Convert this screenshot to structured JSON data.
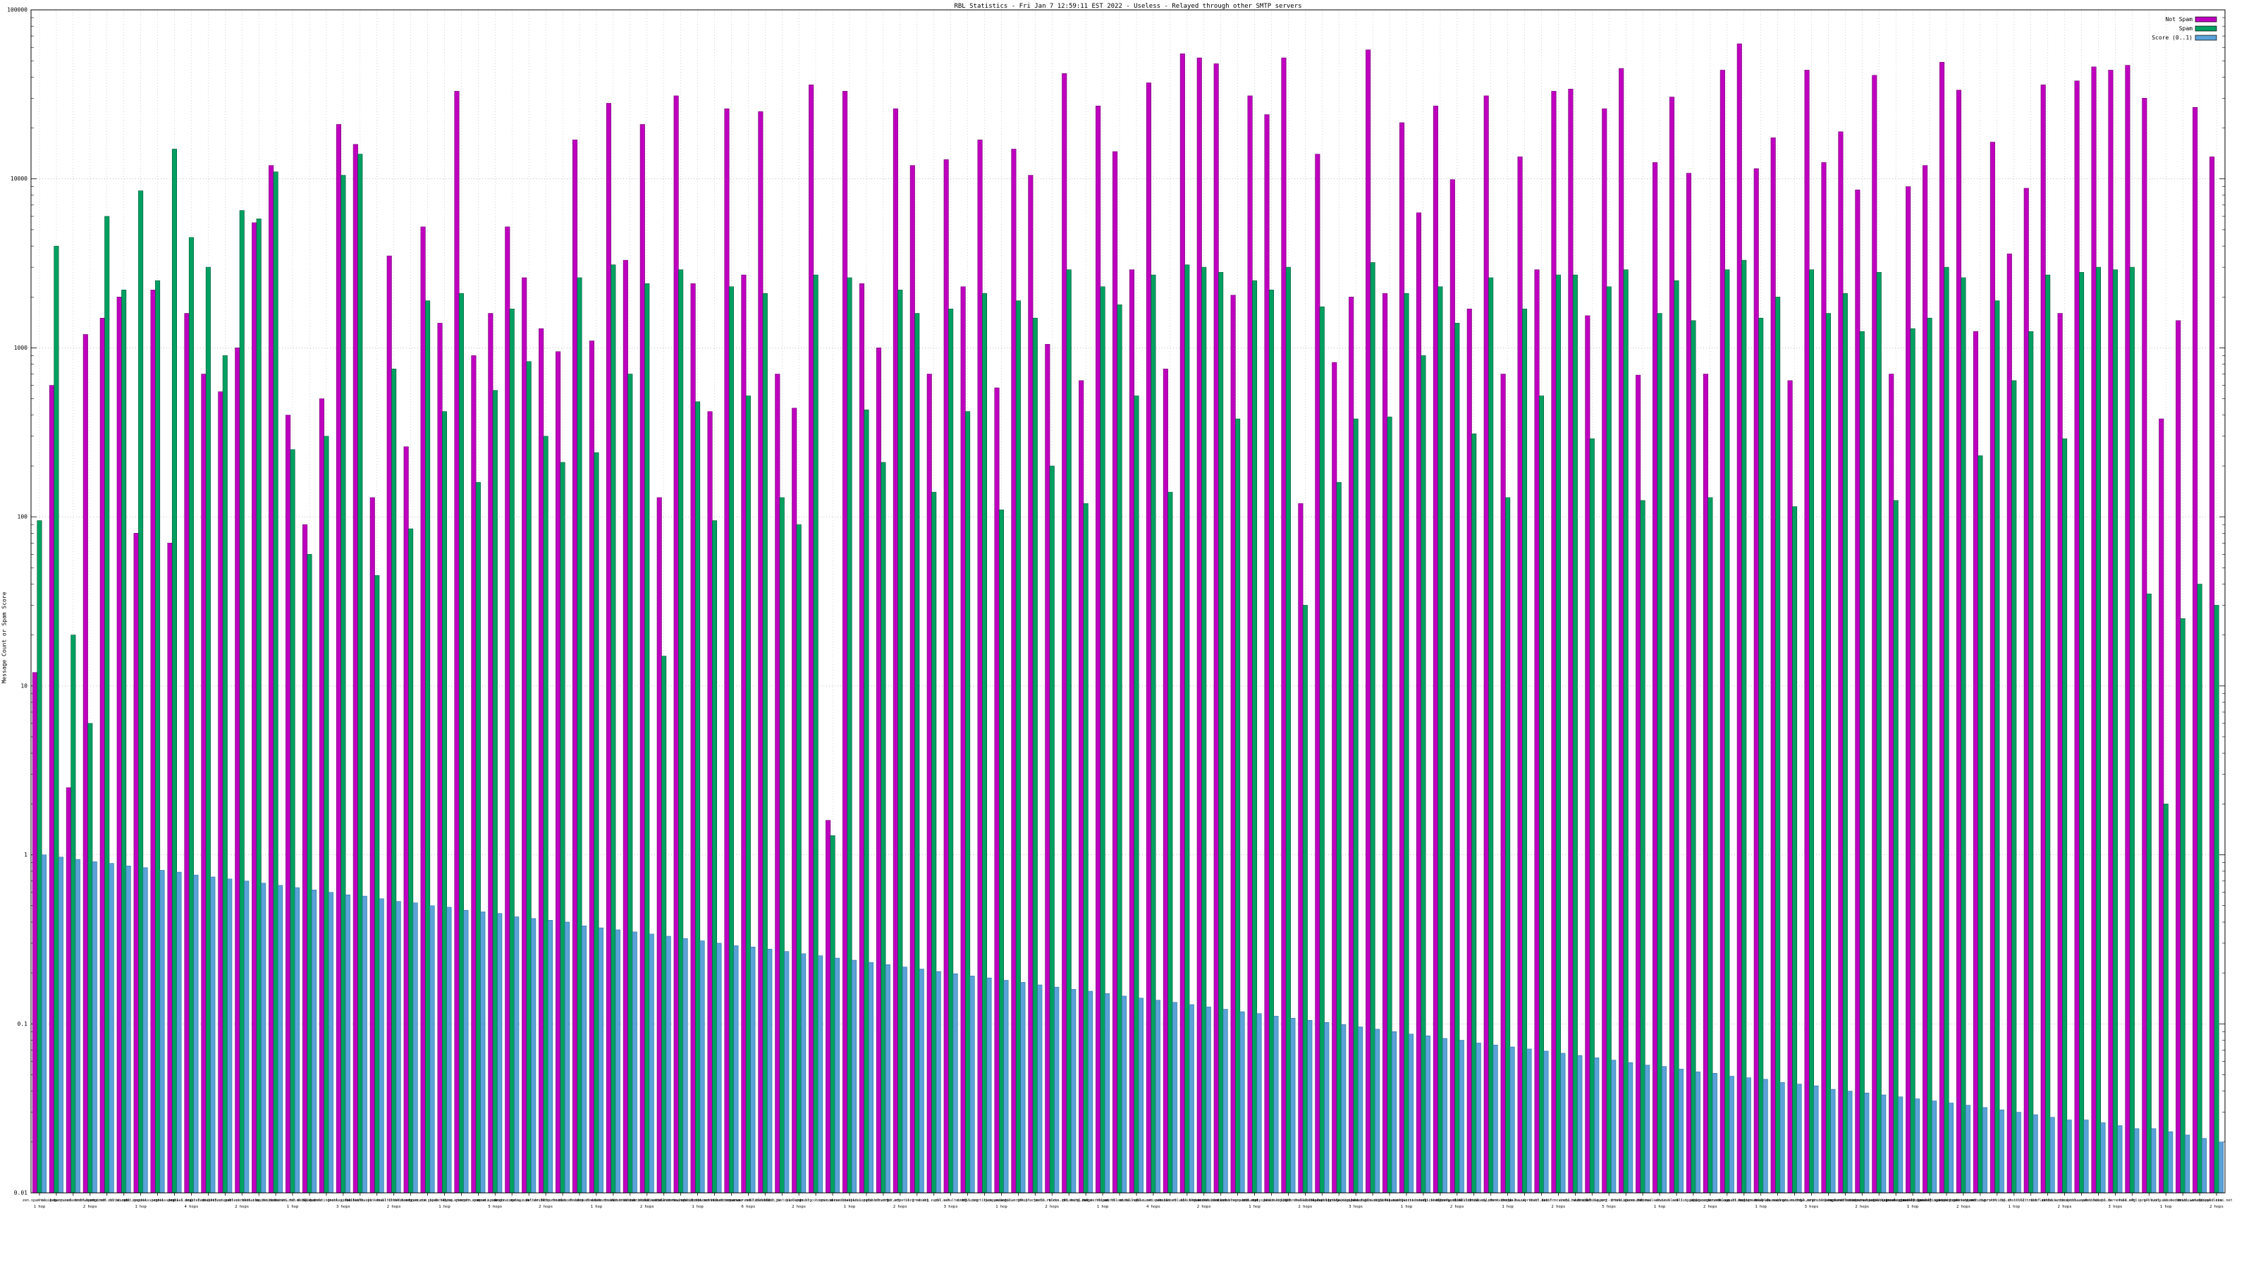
{
  "title": "RBL Statistics - Fri Jan  7 12:59:11 EST 2022 - Useless - Relayed through other SMTP servers",
  "ylabel": "Message Count or Spam Score",
  "legend": [
    {
      "label": "Not Spam",
      "color": "#bf00bf"
    },
    {
      "label": "Spam",
      "color": "#00a060"
    },
    {
      "label": "Score (0..1)",
      "color": "#5aa2d8"
    }
  ],
  "chart_data": {
    "type": "bar",
    "log_scale": true,
    "ylim": [
      0.01,
      100000
    ],
    "grid": true,
    "legend_position": "top-right",
    "yticks": [
      "100000",
      "10000",
      "1000",
      "100",
      "10",
      "1",
      "0.1",
      "0.01"
    ],
    "categories": [
      "zen.spamhaus.org",
      "bl.spamcop.net",
      "b.barracudacentral.org",
      "dnsbl.sorbs.net",
      "spam.dnsbl.sorbs.net",
      "cbl.abuseat.org",
      "pbl.spamhaus.org",
      "sbl.spamhaus.org",
      "xbl.spamhaus.org",
      "dnsbl-1.uceprotect.net",
      "dnsbl-2.uceprotect.net",
      "dnsbl-3.uceprotect.net",
      "psbl.surriel.com",
      "bl.mailspike.net",
      "ix.dnsbl.manitu.net",
      "combined.rbl.msrbl.net",
      "db.wpbl.info",
      "bl.spameatingmonkey.net",
      "dnsbl.spfbl.net",
      "all.s5h.net",
      "hostkarma.junkemailfilter.com",
      "dnsbl.dronebl.org",
      "bl.nordspam.com",
      "truncate.gbudb.net",
      "spamrbl.imp.ch",
      "dyna.spamrats.com",
      "noptr.spamrats.com",
      "spam.spamrats.com",
      "bogons.cymru.com",
      "relays.nether.net",
      "dul.dnsbl.sorbs.net",
      "http.dnsbl.sorbs.net",
      "misc.dnsbl.sorbs.net",
      "smtp.dnsbl.sorbs.net",
      "socks.dnsbl.sorbs.net",
      "web.dnsbl.sorbs.net",
      "zombie.dnsbl.sorbs.net",
      "block.dnsbl.sorbs.net",
      "escalations.dnsbl.sorbs.net",
      "new.spam.dnsbl.sorbs.net",
      "bl.score.senderscore.com",
      "rbl.interserver.net",
      "spamsources.fabel.dk",
      "bl.blocklist.de",
      "dnsbl.justspam.org",
      "bl.0spam.org",
      "dnsbl.cobion.com",
      "spam.abuse.ch",
      "orvedb.aupads.org",
      "netblock.pedantic.org",
      "rbl.efnetrbl.org",
      "tor.efnet.org",
      "bl.drmx.org",
      "dnsbl.zapbl.net",
      "rbl.schulte.org",
      "dnsrbl.org",
      "bl.scientificspam.net",
      "spam.pedantic.org",
      "singular.ttk.pte.hu",
      "dnsbl.rymsho.ru",
      "rbl.rbldns.ru",
      "virus.rbl.msrbl.net",
      "phishing.rbl.msrbl.net",
      "images.rbl.msrbl.net",
      "spam.rbl.msrbl.net",
      "z.mailspike.net",
      "bl.suomispam.net",
      "dnsbl.net.ua",
      "netscan.rbl.blockedservers.com",
      "rbl.blockedservers.com",
      "spam.rbl.blockedservers.com",
      "list.blogspambl.com",
      "bsb.empty.us",
      "bsb.spamlookup.net",
      "black.dnsbl.brukalai.lt",
      "light.dnsbl.brukalai.lt",
      "dnsbl.darklist.de",
      "openproxy.bls.digibase.ca",
      "proxyabuse.bls.digibase.ca",
      "spambot.bls.digibase.ca",
      "rbl.0spam.org",
      "bl.nosolicitado.org",
      "bl.worst.nosolicitado.org",
      "dnsbl.beetjevreemd.nl",
      "bitonly.dnsbl.bit.nl",
      "blacklist.woody.ch",
      "dnsbl.calivent.com.pe",
      "torexit.dan.me.uk",
      "dnsbl-0.uceprotect.net",
      "dnsbl.isx.fr",
      "dnsbl.mcu.edu.tw",
      "dnsbl.rizon.net",
      "dnsblchile.org",
      "dob.sibl.support-intelligence.net",
      "drone.abuse.ch",
      "dul.ru",
      "korea.services.net",
      "mail-abuse.blacklist.jippg.org",
      "all.spamrats.com",
      "ubl.unsubscore.com",
      "orvedb.aupads.org",
      "relays.bl.kundenserver.de",
      "dialups.mail-abuse.org",
      "rbl-plus.mail-abuse.org",
      "access.redhawk.org",
      "rbl.zenon.net",
      "dnsbl.kempt.net",
      "spamguard.leadmon.net",
      "backscatter.spameatingmonkey.net",
      "badnets.spameatingmonkey.net",
      "netbl.spameatingmonkey.net",
      "fresh.spameatingmonkey.net",
      "fresh10.spameatingmonkey.net",
      "fresh15.spameatingmonkey.net",
      "ips.backscatterer.org",
      "spamlist.or.kr",
      "wormrbl.imp.ch",
      "virbl.dnsbl.bit.nl",
      "rbl2.triumf.ca",
      "ubl.lashback.com",
      "dnsbl.anticaptcha.net",
      "dnsbl.aspnet.hu",
      "dnsbl.inps.de",
      "dnsbl.tornevall.org",
      "free.v4bl.org",
      "ip.v4bl.org",
      "mail-abuse.com",
      "st.technovision.dk",
      "dnsbl.webequipped.com",
      "dnswl.leisi.net"
    ],
    "hops": {
      "0": "1 hop",
      "3": "2 hops",
      "6": "1 hop",
      "9": "4 hops",
      "12": "2 hops",
      "15": "1 hop",
      "18": "3 hops",
      "21": "2 hops",
      "24": "1 hop",
      "27": "5 hops",
      "30": "2 hops",
      "33": "1 hop",
      "36": "2 hops",
      "39": "1 hop",
      "42": "6 hops",
      "45": "2 hops",
      "48": "1 hop",
      "51": "2 hops",
      "54": "3 hops",
      "57": "1 hop",
      "60": "2 hops",
      "63": "1 hop",
      "66": "4 hops",
      "69": "2 hops",
      "72": "1 hop",
      "75": "2 hops",
      "78": "3 hops",
      "81": "1 hop",
      "84": "2 hops",
      "87": "1 hop",
      "90": "2 hops",
      "93": "5 hops",
      "96": "1 hop",
      "99": "2 hops",
      "102": "1 hop",
      "105": "3 hops",
      "108": "2 hops",
      "111": "1 hop",
      "114": "2 hops",
      "117": "1 hop",
      "120": "2 hops",
      "123": "3 hops",
      "126": "1 hop",
      "129": "2 hops"
    },
    "series": [
      {
        "name": "Not Spam",
        "key": "notspam",
        "color": "#bf00bf",
        "stroke": "#6e006e",
        "values": [
          12,
          600,
          2.5,
          1200,
          1500,
          2000,
          80,
          2200,
          70,
          1600,
          700,
          550,
          1000,
          5500,
          12000,
          400,
          90,
          500,
          21000,
          16000,
          130,
          3500,
          260,
          5200,
          1400,
          33000,
          900,
          1600,
          5200,
          2600,
          1300,
          950,
          17000,
          1100,
          28000,
          3300,
          21000,
          130,
          31000,
          2400,
          420,
          26000,
          2700,
          25000,
          700,
          440,
          36000,
          1.6,
          33000,
          2400,
          1000,
          26000,
          12000,
          700,
          13000,
          2300,
          17000,
          580,
          15000,
          10500,
          1050,
          42000,
          640,
          27000,
          14500,
          2900,
          37000,
          750,
          55000,
          52000,
          48000,
          2050,
          31000,
          24000,
          52000,
          120,
          14000,
          820,
          2000,
          58000,
          2100,
          21500,
          6300,
          27000,
          9900,
          1700,
          31000,
          700,
          13500,
          2900,
          33000,
          34000,
          1550,
          26000,
          45000,
          690,
          12500,
          30500,
          10800,
          700,
          44000,
          63000,
          11500,
          17500,
          640,
          44000,
          12500,
          19000,
          8600,
          41000,
          700,
          9000,
          12000,
          49000,
          33500,
          1250,
          16500,
          3600,
          8800,
          36000,
          1600,
          38000,
          46000,
          44000,
          47000,
          30000,
          380,
          1450,
          26500,
          13500
        ]
      },
      {
        "name": "Spam",
        "key": "spam",
        "color": "#00a060",
        "stroke": "#00573a",
        "values": [
          95,
          4000,
          20,
          6,
          6000,
          2200,
          8500,
          2500,
          15000,
          4500,
          3000,
          900,
          6500,
          5800,
          11000,
          250,
          60,
          300,
          10500,
          14000,
          45,
          750,
          85,
          1900,
          420,
          2100,
          160,
          560,
          1700,
          830,
          300,
          210,
          2600,
          240,
          3100,
          700,
          2400,
          15,
          2900,
          480,
          95,
          2300,
          520,
          2100,
          130,
          90,
          2700,
          1.3,
          2600,
          430,
          210,
          2200,
          1600,
          140,
          1700,
          420,
          2100,
          110,
          1900,
          1500,
          200,
          2900,
          120,
          2300,
          1800,
          520,
          2700,
          140,
          3100,
          3000,
          2800,
          380,
          2500,
          2200,
          3000,
          30,
          1750,
          160,
          380,
          3200,
          390,
          2100,
          900,
          2300,
          1400,
          310,
          2600,
          130,
          1700,
          520,
          2700,
          2700,
          290,
          2300,
          2900,
          125,
          1600,
          2500,
          1450,
          130,
          2900,
          3300,
          1500,
          2000,
          115,
          2900,
          1600,
          2100,
          1250,
          2800,
          125,
          1300,
          1500,
          3000,
          2600,
          230,
          1900,
          640,
          1250,
          2700,
          290,
          2800,
          3000,
          2900,
          3000,
          35,
          2,
          25,
          40,
          30
        ]
      },
      {
        "name": "Score (0..1)",
        "key": "score",
        "color": "#5aa2d8",
        "stroke": "#2f6fa0",
        "values": [
          1.0,
          0.97,
          0.94,
          0.91,
          0.89,
          0.86,
          0.84,
          0.81,
          0.79,
          0.76,
          0.74,
          0.72,
          0.7,
          0.68,
          0.66,
          0.64,
          0.62,
          0.6,
          0.58,
          0.57,
          0.55,
          0.53,
          0.52,
          0.5,
          0.49,
          0.47,
          0.46,
          0.45,
          0.43,
          0.42,
          0.41,
          0.4,
          0.38,
          0.37,
          0.36,
          0.35,
          0.34,
          0.33,
          0.32,
          0.31,
          0.3,
          0.29,
          0.285,
          0.277,
          0.268,
          0.26,
          0.253,
          0.245,
          0.238,
          0.231,
          0.224,
          0.217,
          0.211,
          0.204,
          0.198,
          0.192,
          0.187,
          0.181,
          0.176,
          0.17,
          0.165,
          0.16,
          0.156,
          0.151,
          0.146,
          0.142,
          0.138,
          0.134,
          0.13,
          0.126,
          0.122,
          0.118,
          0.115,
          0.111,
          0.108,
          0.105,
          0.102,
          0.099,
          0.096,
          0.093,
          0.09,
          0.087,
          0.085,
          0.082,
          0.08,
          0.077,
          0.075,
          0.073,
          0.071,
          0.069,
          0.067,
          0.065,
          0.063,
          0.061,
          0.059,
          0.057,
          0.056,
          0.054,
          0.052,
          0.051,
          0.049,
          0.048,
          0.047,
          0.045,
          0.044,
          0.043,
          0.041,
          0.04,
          0.039,
          0.038,
          0.037,
          0.036,
          0.035,
          0.034,
          0.033,
          0.032,
          0.031,
          0.03,
          0.029,
          0.028,
          0.027,
          0.027,
          0.026,
          0.025,
          0.024,
          0.024,
          0.023,
          0.022,
          0.021,
          0.02
        ]
      }
    ],
    "title": "RBL Statistics - Fri Jan  7 12:59:11 EST 2022 - Useless - Relayed through other SMTP servers",
    "xlabel": "",
    "ylabel": "Message Count or Spam Score"
  }
}
